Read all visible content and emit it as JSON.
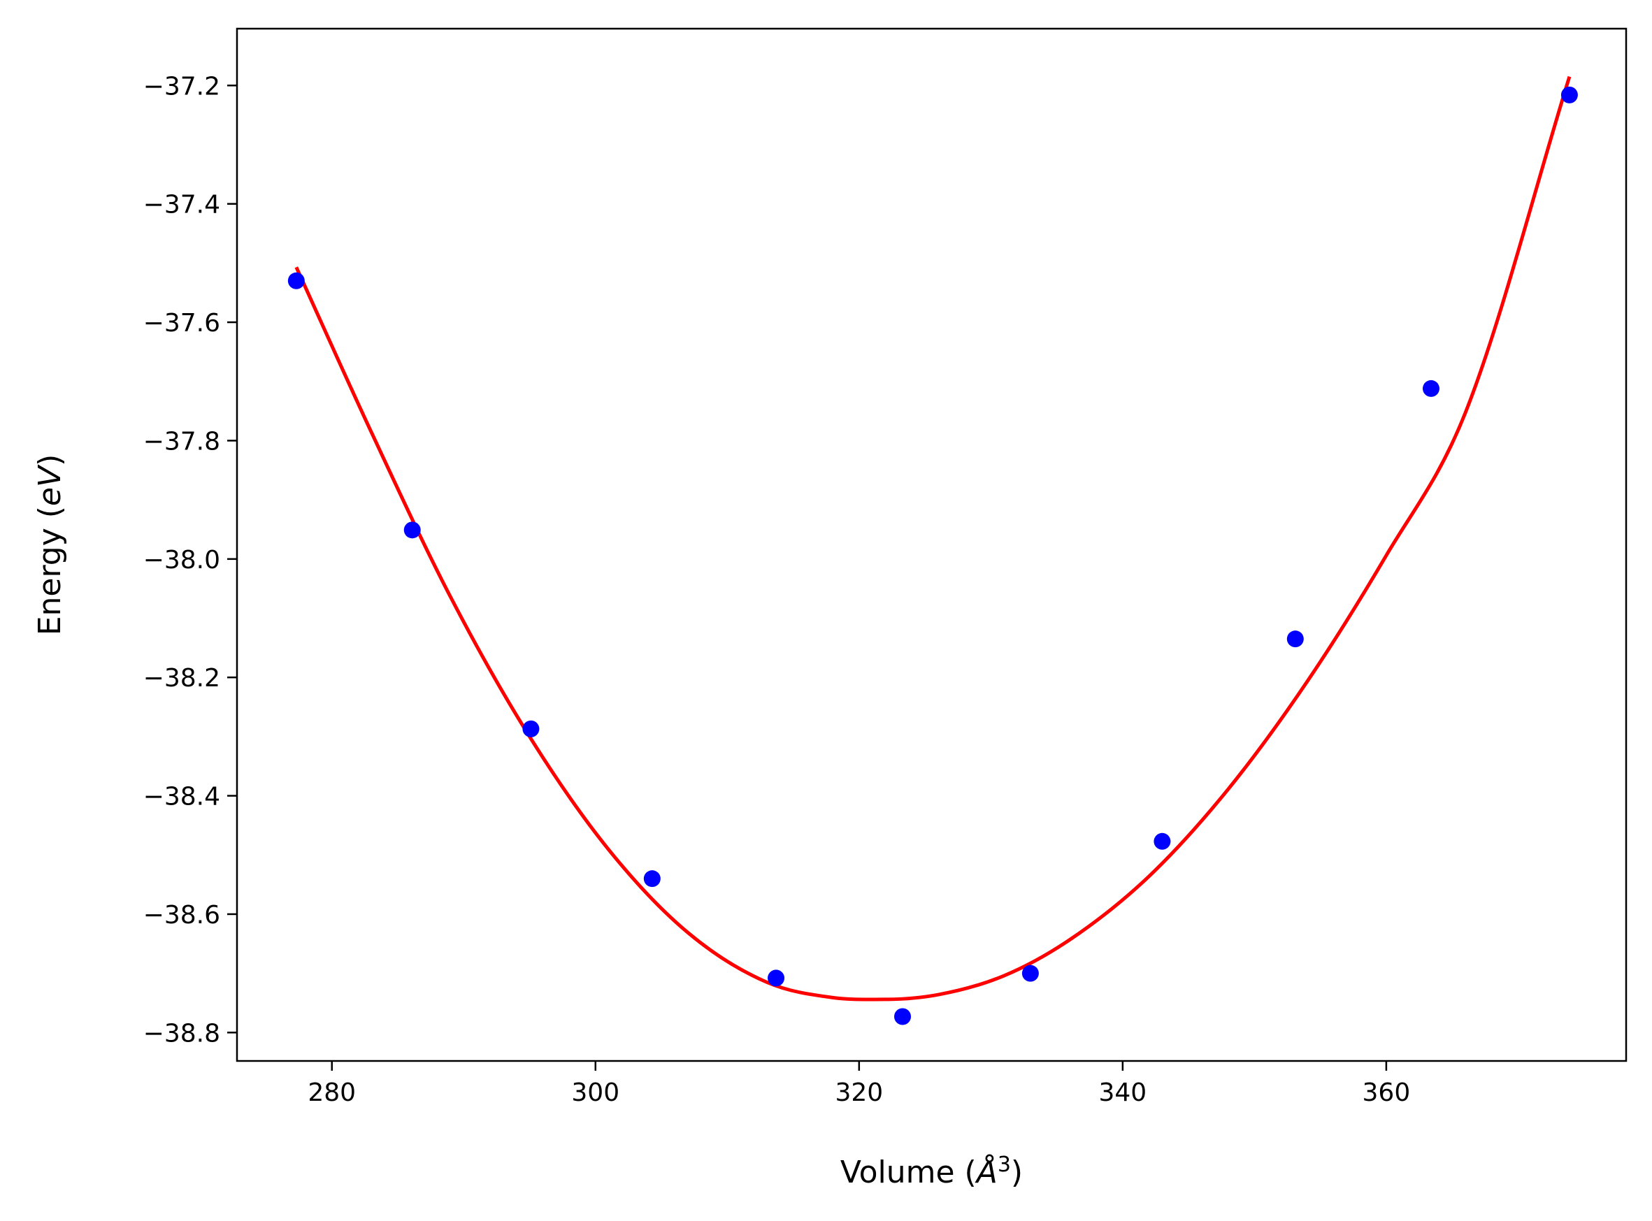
{
  "chart_data": {
    "type": "scatter",
    "title": "",
    "xlabel_text": "Volume (",
    "xlabel_unit": "Å",
    "xlabel_exp": "3",
    "xlabel_close": ")",
    "ylabel_text": "Energy (",
    "ylabel_unit": "eV",
    "ylabel_close": ")",
    "xlim": [
      272.8,
      378.2
    ],
    "ylim": [
      -38.848,
      -37.104
    ],
    "xticks": [
      280,
      300,
      320,
      340,
      360
    ],
    "xtick_labels": [
      "280",
      "300",
      "320",
      "340",
      "360"
    ],
    "yticks": [
      -38.8,
      -38.6,
      -38.4,
      -38.2,
      -38.0,
      -37.8,
      -37.6,
      -37.4,
      -37.2
    ],
    "ytick_labels": [
      "−38.8",
      "−38.6",
      "−38.4",
      "−38.2",
      "−38.0",
      "−37.8",
      "−37.6",
      "−37.4",
      "−37.2"
    ],
    "grid": false,
    "series": [
      {
        "kind": "points",
        "color": "#0000ff",
        "x": [
          277.3,
          286.1,
          295.1,
          304.3,
          313.7,
          323.3,
          333.0,
          343.0,
          353.1,
          363.4,
          373.9
        ],
        "y": [
          -37.53,
          -37.951,
          -38.287,
          -38.54,
          -38.708,
          -38.773,
          -38.7,
          -38.477,
          -38.135,
          -37.712,
          -37.216
        ]
      },
      {
        "kind": "fit",
        "color": "#ff0000",
        "x": [
          277.3,
          283.0,
          289.0,
          295.0,
          301.0,
          307.0,
          313.0,
          318.0,
          321.8,
          326.0,
          331.0,
          336.0,
          342.0,
          348.0,
          354.0,
          360.0,
          366.0,
          373.9
        ],
        "y": [
          -37.507,
          -37.786,
          -38.064,
          -38.3,
          -38.491,
          -38.631,
          -38.715,
          -38.741,
          -38.744,
          -38.736,
          -38.704,
          -38.643,
          -38.536,
          -38.389,
          -38.207,
          -37.994,
          -37.753,
          -37.185
        ]
      }
    ]
  }
}
